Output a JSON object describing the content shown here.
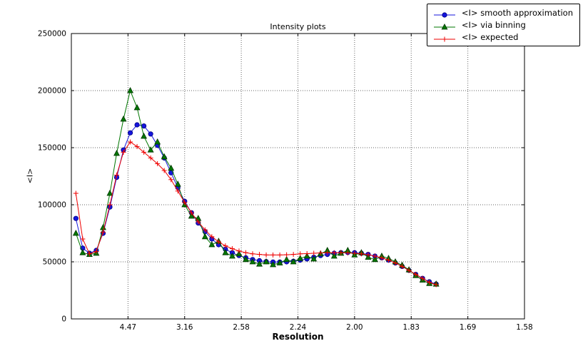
{
  "chart_data": {
    "type": "line",
    "title": "Intensity plots",
    "xlabel": "Resolution",
    "ylabel": "<I>",
    "grid": true,
    "legend_position": "upper right (overlapping top edge of figure)",
    "x_axis": {
      "min": 0,
      "max": 0.4,
      "tick_positions": [
        0.05,
        0.1,
        0.15,
        0.2,
        0.25,
        0.3,
        0.35,
        0.4
      ],
      "tick_labels": [
        "4.47",
        "3.16",
        "2.58",
        "2.24",
        "2.00",
        "1.83",
        "1.69",
        "1.58"
      ]
    },
    "y_axis": {
      "min": 0,
      "max": 250000,
      "tick_positions": [
        0,
        50000,
        100000,
        150000,
        200000,
        250000
      ],
      "tick_labels": [
        "0",
        "50000",
        "100000",
        "150000",
        "200000",
        "250000"
      ]
    },
    "x": [
      0.004,
      0.01,
      0.016,
      0.022,
      0.028,
      0.034,
      0.04,
      0.046,
      0.052,
      0.058,
      0.064,
      0.07,
      0.076,
      0.082,
      0.088,
      0.094,
      0.1,
      0.106,
      0.112,
      0.118,
      0.124,
      0.13,
      0.136,
      0.142,
      0.148,
      0.154,
      0.16,
      0.166,
      0.172,
      0.178,
      0.184,
      0.19,
      0.196,
      0.202,
      0.208,
      0.214,
      0.22,
      0.226,
      0.232,
      0.238,
      0.244,
      0.25,
      0.256,
      0.262,
      0.268,
      0.274,
      0.28,
      0.286,
      0.292,
      0.298,
      0.304,
      0.31,
      0.316,
      0.322
    ],
    "series": [
      {
        "name": "<I> smooth approximation",
        "color": "#1515dd",
        "edge": "#000080",
        "marker": "circle",
        "values": [
          88000,
          62000,
          57500,
          60000,
          75000,
          98000,
          124000,
          148000,
          163000,
          170000,
          169000,
          162000,
          152000,
          141000,
          128000,
          115000,
          103000,
          93000,
          84000,
          76500,
          70000,
          65000,
          61000,
          58000,
          55500,
          53500,
          52000,
          51000,
          50200,
          49800,
          49800,
          50000,
          50500,
          51500,
          52500,
          54000,
          55500,
          56500,
          57500,
          58000,
          58200,
          58000,
          57500,
          56500,
          55000,
          53500,
          51500,
          49000,
          46000,
          42500,
          39000,
          35500,
          32500,
          30500
        ]
      },
      {
        "name": "<I> via binning",
        "color": "#007700",
        "edge": "#003300",
        "marker": "triangle",
        "values": [
          75000,
          58000,
          56500,
          57500,
          80000,
          110000,
          145000,
          175000,
          200000,
          185000,
          160000,
          148000,
          155000,
          142000,
          132000,
          118000,
          100000,
          90000,
          88000,
          72000,
          65000,
          68000,
          58000,
          55000,
          57000,
          52000,
          50000,
          48000,
          50000,
          47500,
          49000,
          52000,
          50000,
          53000,
          55000,
          52500,
          57000,
          60000,
          55000,
          57500,
          60000,
          56000,
          58000,
          54000,
          52000,
          55000,
          53000,
          50000,
          47000,
          43000,
          38000,
          34000,
          31000,
          30500
        ]
      },
      {
        "name": "<I> expected",
        "color": "#ee0000",
        "edge": "#ee0000",
        "marker": "plus",
        "values": [
          110000,
          70000,
          57000,
          59000,
          76000,
          100000,
          126000,
          146000,
          155000,
          151000,
          146000,
          141000,
          136000,
          130000,
          122000,
          112000,
          102000,
          93000,
          85000,
          78000,
          72000,
          67500,
          64000,
          61500,
          59500,
          58000,
          57000,
          56500,
          56000,
          56000,
          56000,
          56200,
          56500,
          57000,
          57200,
          57500,
          57800,
          58000,
          58000,
          58000,
          57800,
          57500,
          57000,
          56200,
          55000,
          53500,
          51500,
          49000,
          46000,
          42500,
          39000,
          35500,
          32000,
          30000
        ]
      }
    ]
  }
}
